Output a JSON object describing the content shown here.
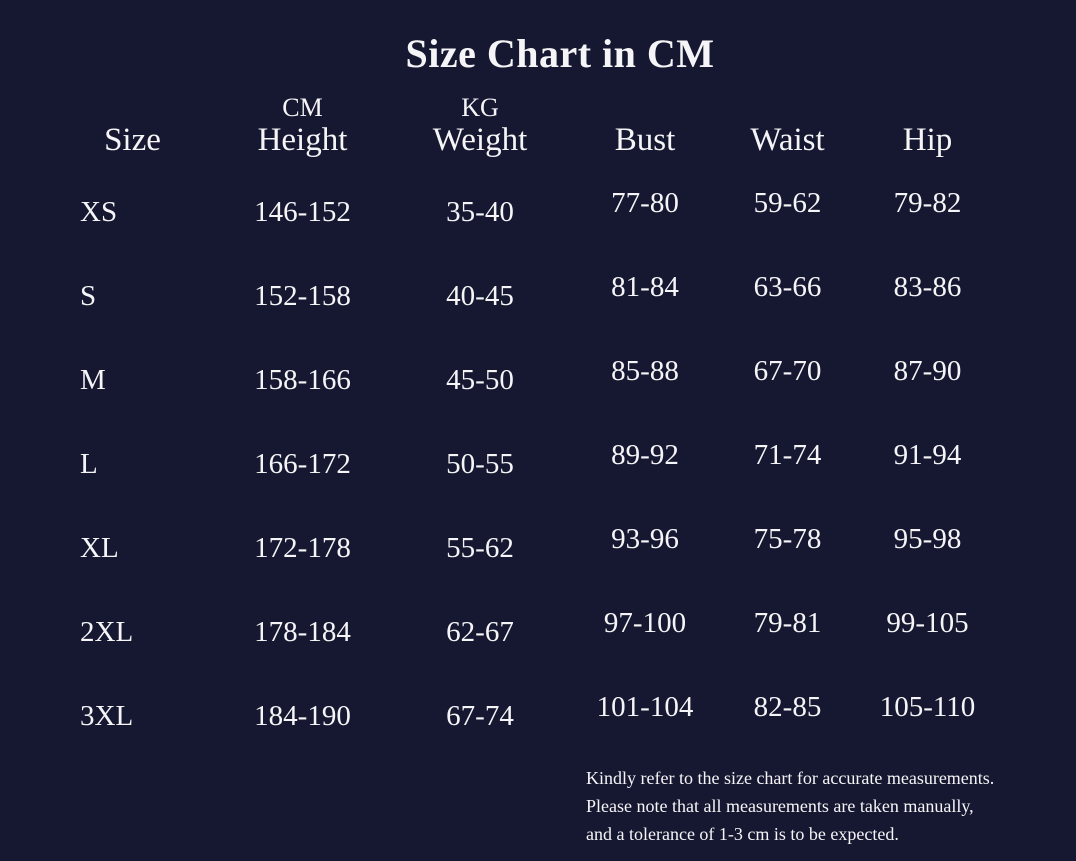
{
  "title": "Size Chart in CM",
  "table": {
    "headers": {
      "size": {
        "top": "",
        "label": "Size"
      },
      "height": {
        "top": "CM",
        "label": "Height"
      },
      "weight": {
        "top": "KG",
        "label": "Weight"
      },
      "bust": {
        "top": "",
        "label": "Bust"
      },
      "waist": {
        "top": "",
        "label": "Waist"
      },
      "hip": {
        "top": "",
        "label": "Hip"
      }
    },
    "rows": [
      {
        "size": "XS",
        "height": "146-152",
        "weight": "35-40",
        "bust": "77-80",
        "waist": "59-62",
        "hip": "79-82"
      },
      {
        "size": "S",
        "height": "152-158",
        "weight": "40-45",
        "bust": "81-84",
        "waist": "63-66",
        "hip": "83-86"
      },
      {
        "size": "M",
        "height": "158-166",
        "weight": "45-50",
        "bust": "85-88",
        "waist": "67-70",
        "hip": "87-90"
      },
      {
        "size": "L",
        "height": "166-172",
        "weight": "50-55",
        "bust": "89-92",
        "waist": "71-74",
        "hip": "91-94"
      },
      {
        "size": "XL",
        "height": "172-178",
        "weight": "55-62",
        "bust": "93-96",
        "waist": "75-78",
        "hip": "95-98"
      },
      {
        "size": "2XL",
        "height": "178-184",
        "weight": "62-67",
        "bust": "97-100",
        "waist": "79-81",
        "hip": "99-105"
      },
      {
        "size": "3XL",
        "height": "184-190",
        "weight": "67-74",
        "bust": "101-104",
        "waist": "82-85",
        "hip": "105-110"
      }
    ]
  },
  "footnote": {
    "line1": "Kindly refer to the size chart for accurate measurements.",
    "line2": "Please note that all measurements are taken manually,",
    "line3": "and a tolerance of 1-3 cm is to be expected."
  },
  "colors": {
    "background": "#161831",
    "text": "#f5f5f7"
  }
}
